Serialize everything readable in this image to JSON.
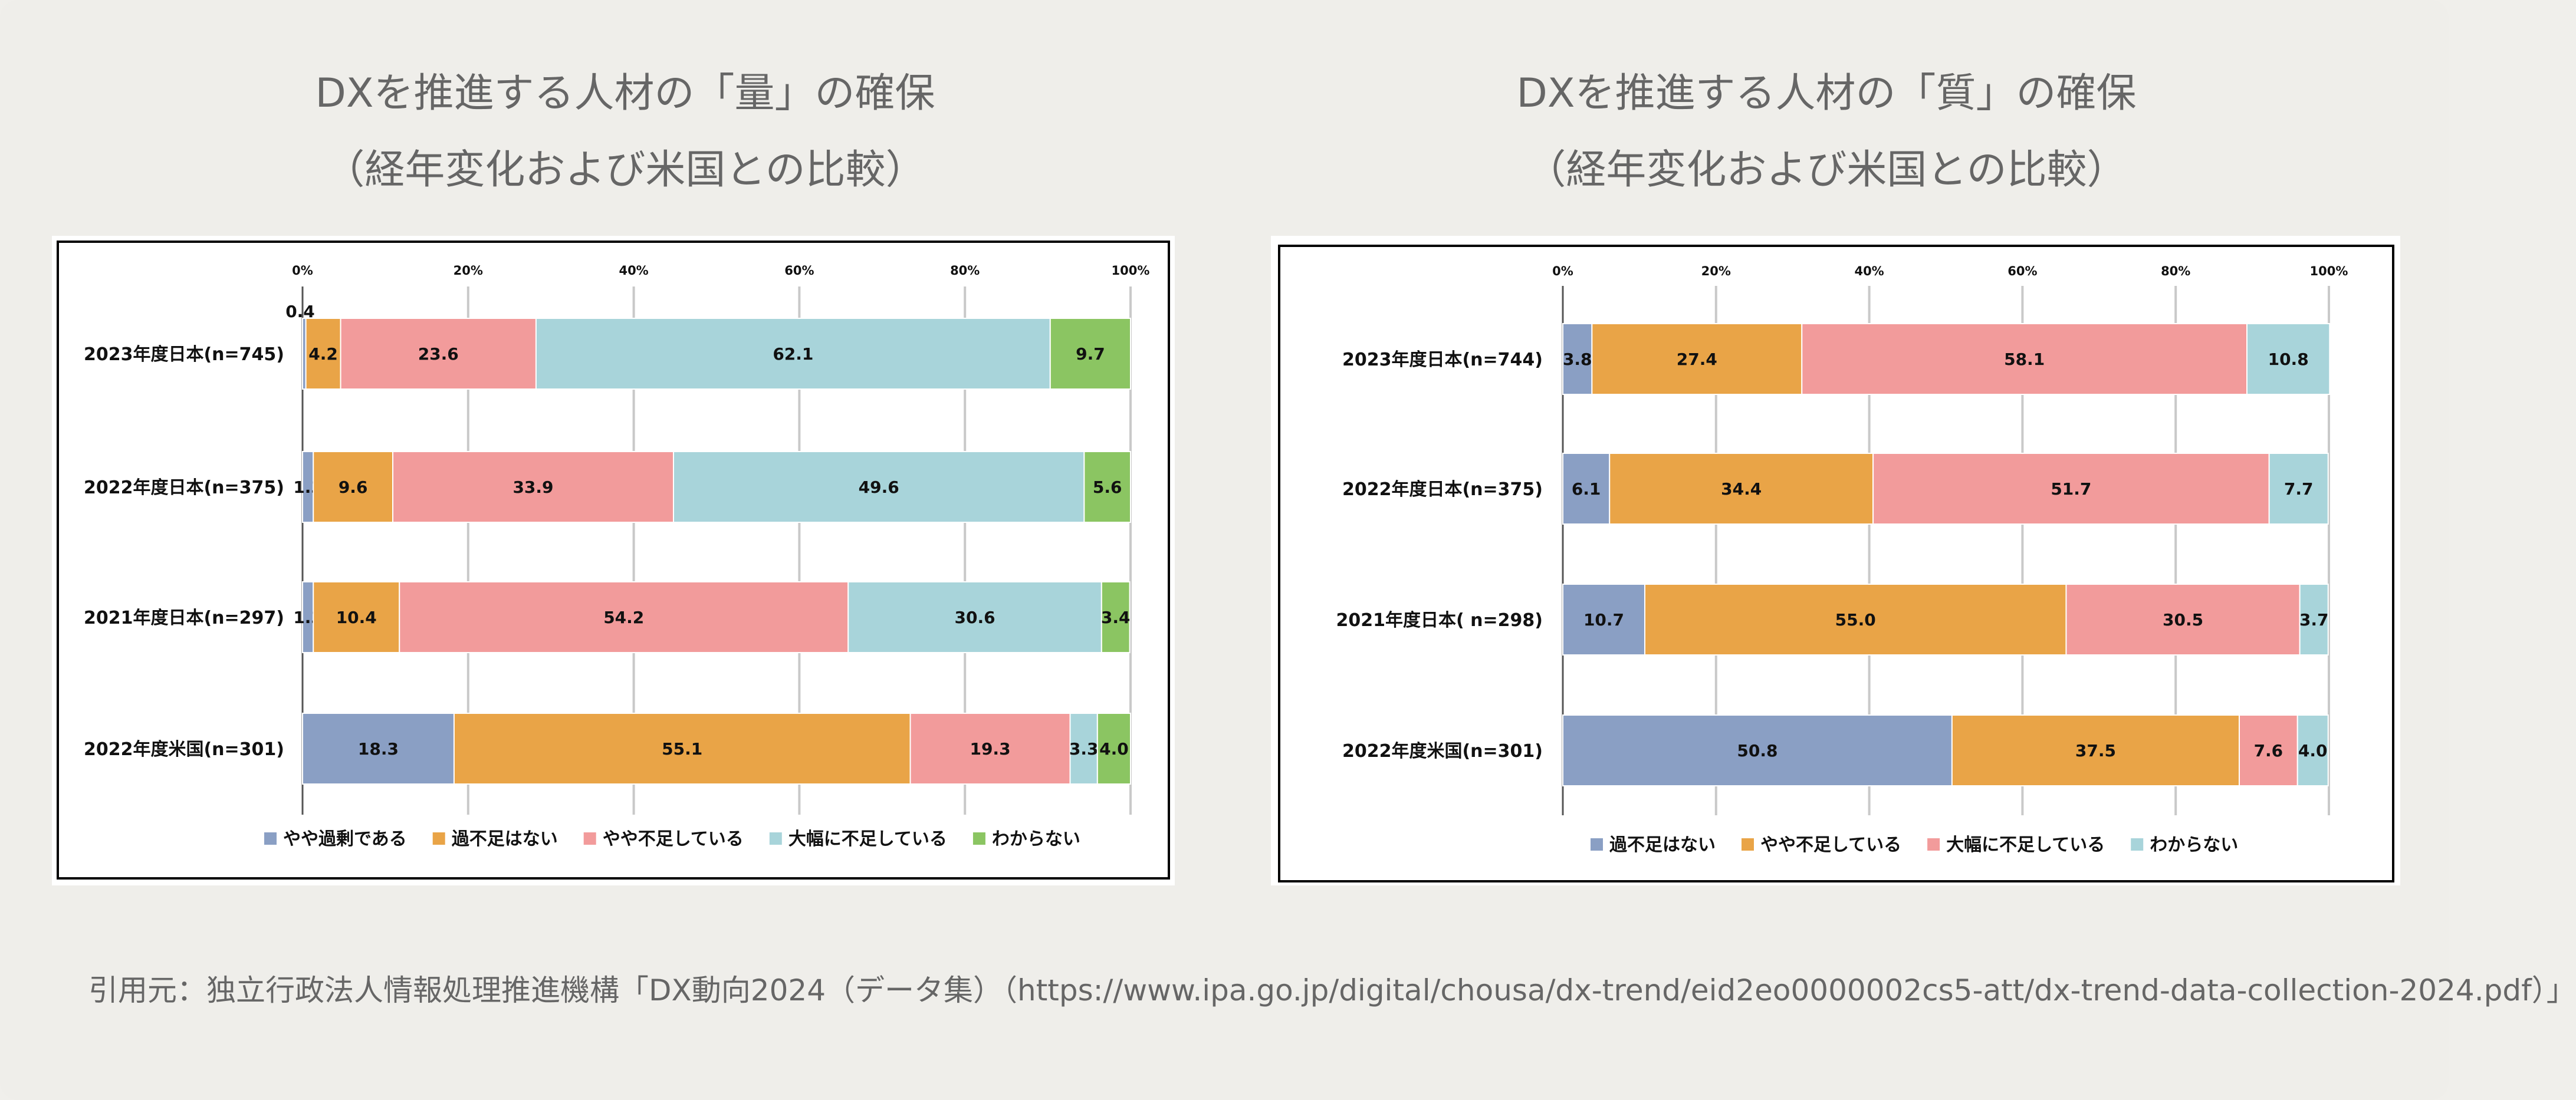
{
  "chart_data": [
    {
      "type": "bar",
      "stacked": true,
      "orientation": "horizontal",
      "title": [
        "DXを推進する人材の「量」の確保",
        "（経年変化および米国との比較）"
      ],
      "categories": [
        "2023年度日本(n=745)",
        "2022年度日本(n=375)",
        "2021年度日本(n=297)",
        "2022年度米国(n=301)"
      ],
      "xticks": [
        "0%",
        "20%",
        "40%",
        "60%",
        "80%",
        "100%"
      ],
      "xlim": [
        0,
        100
      ],
      "grid": true,
      "legend_position": "bottom",
      "series": [
        {
          "name": "やや過剰である",
          "color": "#8a9fc4",
          "values": [
            0.4,
            1.3,
            1.3,
            18.3
          ]
        },
        {
          "name": "過不足はない",
          "color": "#e9a447",
          "values": [
            4.2,
            9.6,
            10.4,
            55.1
          ]
        },
        {
          "name": "やや不足している",
          "color": "#f29b9b",
          "values": [
            23.6,
            33.9,
            54.2,
            19.3
          ]
        },
        {
          "name": "大幅に不足している",
          "color": "#a8d4da",
          "values": [
            62.1,
            49.6,
            30.6,
            3.3
          ]
        },
        {
          "name": "わからない",
          "color": "#8bc562",
          "values": [
            9.7,
            5.6,
            3.4,
            4.0
          ]
        }
      ]
    },
    {
      "type": "bar",
      "stacked": true,
      "orientation": "horizontal",
      "title": [
        "DXを推進する人材の「質」の確保",
        "（経年変化および米国との比較）"
      ],
      "categories": [
        "2023年度日本(n=744)",
        "2022年度日本(n=375)",
        "2021年度日本( n=298)",
        "2022年度米国(n=301)"
      ],
      "xticks": [
        "0%",
        "20%",
        "40%",
        "60%",
        "80%",
        "100%"
      ],
      "xlim": [
        0,
        100
      ],
      "grid": true,
      "legend_position": "bottom",
      "series": [
        {
          "name": "過不足はない",
          "color": "#8a9fc4",
          "values": [
            3.8,
            6.1,
            10.7,
            50.8
          ]
        },
        {
          "name": "やや不足している",
          "color": "#e9a447",
          "values": [
            27.4,
            34.4,
            55.0,
            37.5
          ]
        },
        {
          "name": "大幅に不足している",
          "color": "#f29b9b",
          "values": [
            58.1,
            51.7,
            30.5,
            7.6
          ]
        },
        {
          "name": "わからない",
          "color": "#a8d4da",
          "values": [
            10.8,
            7.7,
            3.7,
            4.0
          ]
        }
      ]
    }
  ],
  "footer": "引用元：独立行政法人情報処理推進機構「DX動向2024（データ集）（https://www.ipa.go.jp/digital/chousa/dx-trend/eid2eo0000002cs5-att/dx-trend-data-collection-2024.pdf）」"
}
